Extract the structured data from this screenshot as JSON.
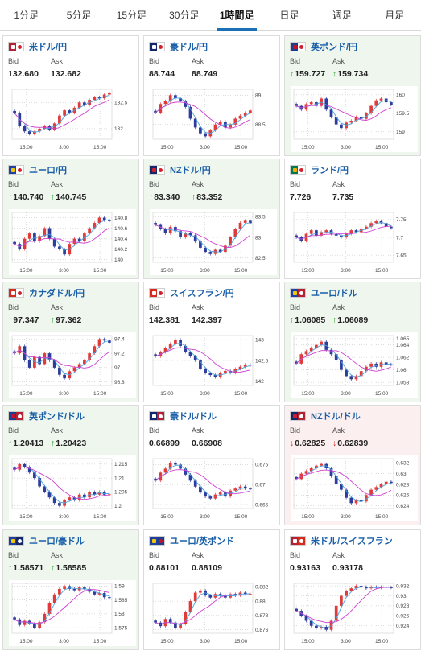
{
  "tabs": [
    {
      "label": "1分足",
      "active": false
    },
    {
      "label": "5分足",
      "active": false
    },
    {
      "label": "15分足",
      "active": false
    },
    {
      "label": "30分足",
      "active": false
    },
    {
      "label": "1時間足",
      "active": true
    },
    {
      "label": "日足",
      "active": false
    },
    {
      "label": "週足",
      "active": false
    },
    {
      "label": "月足",
      "active": false
    }
  ],
  "colors": {
    "up_candle": "#e03a3a",
    "down_candle": "#2c3d9c",
    "ma_short": "#4aa3df",
    "ma_long": "#d040d0",
    "up_arrow": "#1d9a1d",
    "down_arrow": "#d02020"
  },
  "pairs": [
    {
      "name": "米ドル/円",
      "flag_icon": "flag-us-jp",
      "bid_label": "Bid",
      "ask_label": "Ask",
      "bid": "132.680",
      "ask": "132.682",
      "trend": "none",
      "chart": {
        "x_ticks": [
          "15:00",
          "3:00",
          "15:00"
        ],
        "y_ticks": [
          "132.5",
          "132"
        ],
        "y_range": [
          131.8,
          132.75
        ],
        "closes": [
          132.3,
          132.05,
          131.95,
          131.9,
          131.95,
          132.0,
          132.05,
          131.98,
          132.1,
          132.25,
          132.35,
          132.3,
          132.4,
          132.5,
          132.45,
          132.55,
          132.6,
          132.58,
          132.65,
          132.68
        ]
      }
    },
    {
      "name": "豪ドル/円",
      "flag_icon": "flag-au-jp",
      "bid_label": "Bid",
      "ask_label": "Ask",
      "bid": "88.744",
      "ask": "88.749",
      "trend": "none",
      "chart": {
        "x_ticks": [
          "15:00",
          "3:00",
          "15:00"
        ],
        "y_ticks": [
          "89",
          "88.5"
        ],
        "y_range": [
          88.25,
          89.1
        ],
        "closes": [
          88.7,
          88.85,
          88.9,
          89.0,
          88.95,
          88.9,
          88.8,
          88.6,
          88.45,
          88.35,
          88.3,
          88.4,
          88.5,
          88.55,
          88.45,
          88.5,
          88.6,
          88.65,
          88.7,
          88.74
        ]
      }
    },
    {
      "name": "英ポンド/円",
      "flag_icon": "flag-gb-jp",
      "bid_label": "Bid",
      "ask_label": "Ask",
      "bid": "159.727",
      "ask": "159.734",
      "trend": "up",
      "chart": {
        "x_ticks": [
          "15:00",
          "3:00",
          "15:00"
        ],
        "y_ticks": [
          "160",
          "159.5",
          "159"
        ],
        "y_range": [
          158.8,
          160.15
        ],
        "closes": [
          159.7,
          159.6,
          159.75,
          159.8,
          159.7,
          159.9,
          159.6,
          159.4,
          159.2,
          159.1,
          159.25,
          159.3,
          159.4,
          159.35,
          159.5,
          159.7,
          159.85,
          159.9,
          159.8,
          159.73
        ]
      }
    },
    {
      "name": "ユーロ/円",
      "flag_icon": "flag-eu-jp",
      "bid_label": "Bid",
      "ask_label": "Ask",
      "bid": "140.740",
      "ask": "140.745",
      "trend": "up",
      "chart": {
        "x_ticks": [
          "15:00",
          "3:00",
          "15:00"
        ],
        "y_ticks": [
          "140.8",
          "140.6",
          "140.4",
          "140.2",
          "140"
        ],
        "y_range": [
          139.95,
          140.9
        ],
        "closes": [
          140.3,
          140.2,
          140.4,
          140.5,
          140.35,
          140.45,
          140.6,
          140.4,
          140.25,
          140.2,
          140.1,
          140.3,
          140.4,
          140.35,
          140.5,
          140.6,
          140.7,
          140.8,
          140.75,
          140.74
        ]
      }
    },
    {
      "name": "NZドル/円",
      "flag_icon": "flag-nz-jp",
      "bid_label": "Bid",
      "ask_label": "Ask",
      "bid": "83.340",
      "ask": "83.352",
      "trend": "up",
      "chart": {
        "x_ticks": [
          "15:00",
          "3:00",
          "15:00"
        ],
        "y_ticks": [
          "83.5",
          "83",
          "82.5"
        ],
        "y_range": [
          82.4,
          83.6
        ],
        "closes": [
          83.3,
          83.2,
          83.1,
          83.25,
          83.15,
          83.0,
          83.1,
          83.05,
          82.9,
          82.75,
          82.65,
          82.6,
          82.7,
          82.65,
          82.8,
          83.0,
          83.2,
          83.35,
          83.4,
          83.34
        ]
      }
    },
    {
      "name": "ランド/円",
      "flag_icon": "flag-za-jp",
      "bid_label": "Bid",
      "ask_label": "Ask",
      "bid": "7.726",
      "ask": "7.735",
      "trend": "none",
      "chart": {
        "x_ticks": [
          "15:00",
          "3:00",
          "15:00"
        ],
        "y_ticks": [
          "7.75",
          "7.7",
          "7.65"
        ],
        "y_range": [
          7.63,
          7.77
        ],
        "closes": [
          7.7,
          7.69,
          7.71,
          7.72,
          7.705,
          7.715,
          7.72,
          7.71,
          7.705,
          7.7,
          7.71,
          7.72,
          7.715,
          7.725,
          7.73,
          7.74,
          7.745,
          7.74,
          7.73,
          7.726
        ]
      }
    },
    {
      "name": "カナダドル/円",
      "flag_icon": "flag-ca-jp",
      "bid_label": "Bid",
      "ask_label": "Ask",
      "bid": "97.347",
      "ask": "97.362",
      "trend": "up",
      "chart": {
        "x_ticks": [
          "15:00",
          "3:00",
          "15:00"
        ],
        "y_ticks": [
          "97.4",
          "97.2",
          "97",
          "96.8"
        ],
        "y_range": [
          96.75,
          97.45
        ],
        "closes": [
          97.2,
          97.3,
          97.1,
          97.0,
          97.15,
          97.05,
          97.2,
          97.1,
          97.0,
          96.9,
          96.85,
          96.95,
          97.0,
          97.05,
          97.1,
          97.2,
          97.3,
          97.4,
          97.38,
          97.35
        ]
      }
    },
    {
      "name": "スイスフラン/円",
      "flag_icon": "flag-ch-jp",
      "bid_label": "Bid",
      "ask_label": "Ask",
      "bid": "142.381",
      "ask": "142.397",
      "trend": "none",
      "chart": {
        "x_ticks": [
          "15:00",
          "3:00",
          "15:00"
        ],
        "y_ticks": [
          "143",
          "142.5",
          "142"
        ],
        "y_range": [
          141.9,
          143.1
        ],
        "closes": [
          142.6,
          142.7,
          142.8,
          142.9,
          143.0,
          142.85,
          142.7,
          142.6,
          142.5,
          142.3,
          142.2,
          142.15,
          142.1,
          142.2,
          142.25,
          142.2,
          142.3,
          142.35,
          142.4,
          142.38
        ]
      }
    },
    {
      "name": "ユーロ/ドル",
      "flag_icon": "flag-eu-us",
      "bid_label": "Bid",
      "ask_label": "Ask",
      "bid": "1.06085",
      "ask": "1.06089",
      "trend": "up",
      "chart": {
        "x_ticks": [
          "15:00",
          "3:00",
          "15:00"
        ],
        "y_ticks": [
          "1.065",
          "1.064",
          "1.062",
          "1.06",
          "1.058"
        ],
        "y_range": [
          1.0575,
          1.0655
        ],
        "closes": [
          1.061,
          1.0625,
          1.063,
          1.0635,
          1.064,
          1.0645,
          1.0632,
          1.0625,
          1.0615,
          1.06,
          1.059,
          1.0585,
          1.059,
          1.0598,
          1.0605,
          1.061,
          1.0605,
          1.0612,
          1.0609,
          1.06085
        ]
      }
    },
    {
      "name": "英ポンド/ドル",
      "flag_icon": "flag-gb-us",
      "bid_label": "Bid",
      "ask_label": "Ask",
      "bid": "1.20413",
      "ask": "1.20423",
      "trend": "up",
      "chart": {
        "x_ticks": [
          "15:00",
          "3:00",
          "15:00"
        ],
        "y_ticks": [
          "1.215",
          "1.21",
          "1.205",
          "1.2"
        ],
        "y_range": [
          1.199,
          1.217
        ],
        "closes": [
          1.213,
          1.215,
          1.214,
          1.212,
          1.21,
          1.207,
          1.205,
          1.203,
          1.201,
          1.2,
          1.202,
          1.203,
          1.202,
          1.204,
          1.203,
          1.205,
          1.204,
          1.205,
          1.204,
          1.20413
        ]
      }
    },
    {
      "name": "豪ドル/ドル",
      "flag_icon": "flag-au-us",
      "bid_label": "Bid",
      "ask_label": "Ask",
      "bid": "0.66899",
      "ask": "0.66908",
      "trend": "none",
      "chart": {
        "x_ticks": [
          "15:00",
          "3:00",
          "15:00"
        ],
        "y_ticks": [
          "0.675",
          "0.67",
          "0.665"
        ],
        "y_range": [
          0.664,
          0.6765
        ],
        "closes": [
          0.671,
          0.673,
          0.674,
          0.6755,
          0.675,
          0.674,
          0.6725,
          0.671,
          0.6695,
          0.668,
          0.667,
          0.6665,
          0.6675,
          0.668,
          0.667,
          0.6685,
          0.669,
          0.6695,
          0.669,
          0.66899
        ]
      }
    },
    {
      "name": "NZドル/ドル",
      "flag_icon": "flag-nz-us",
      "bid_label": "Bid",
      "ask_label": "Ask",
      "bid": "0.62825",
      "ask": "0.62839",
      "trend": "down",
      "chart": {
        "x_ticks": [
          "15:00",
          "3:00",
          "15:00"
        ],
        "y_ticks": [
          "0.632",
          "0.63",
          "0.628",
          "0.626",
          "0.624"
        ],
        "y_range": [
          0.6235,
          0.6328
        ],
        "closes": [
          0.629,
          0.63,
          0.6305,
          0.631,
          0.6315,
          0.6318,
          0.631,
          0.6295,
          0.628,
          0.627,
          0.6255,
          0.6245,
          0.625,
          0.6248,
          0.626,
          0.627,
          0.6275,
          0.628,
          0.6285,
          0.62825
        ]
      }
    },
    {
      "name": "ユーロ/豪ドル",
      "flag_icon": "flag-eu-au",
      "bid_label": "Bid",
      "ask_label": "Ask",
      "bid": "1.58571",
      "ask": "1.58585",
      "trend": "up",
      "chart": {
        "x_ticks": [
          "15:00",
          "3:00",
          "15:00"
        ],
        "y_ticks": [
          "1.59",
          "1.585",
          "1.58",
          "1.575"
        ],
        "y_range": [
          1.573,
          1.591
        ],
        "closes": [
          1.578,
          1.576,
          1.5775,
          1.5765,
          1.575,
          1.577,
          1.58,
          1.584,
          1.587,
          1.589,
          1.59,
          1.589,
          1.5885,
          1.5895,
          1.589,
          1.588,
          1.587,
          1.5875,
          1.586,
          1.58571
        ]
      }
    },
    {
      "name": "ユーロ/英ポンド",
      "flag_icon": "flag-eu-gb",
      "bid_label": "Bid",
      "ask_label": "Ask",
      "bid": "0.88101",
      "ask": "0.88109",
      "trend": "none",
      "chart": {
        "x_ticks": [
          "15:00",
          "3:00",
          "15:00"
        ],
        "y_ticks": [
          "0.882",
          "0.88",
          "0.878",
          "0.876"
        ],
        "y_range": [
          0.8755,
          0.8825
        ],
        "closes": [
          0.877,
          0.8765,
          0.8775,
          0.877,
          0.8762,
          0.8768,
          0.8785,
          0.88,
          0.8812,
          0.8815,
          0.8808,
          0.8805,
          0.881,
          0.8808,
          0.8805,
          0.881,
          0.8808,
          0.8812,
          0.881,
          0.88101
        ]
      }
    },
    {
      "name": "米ドル/スイスフラン",
      "flag_icon": "flag-us-ch",
      "bid_label": "Bid",
      "ask_label": "Ask",
      "bid": "0.93163",
      "ask": "0.93178",
      "trend": "none",
      "chart": {
        "x_ticks": [
          "15:00",
          "3:00",
          "15:00"
        ],
        "y_ticks": [
          "0.932",
          "0.93",
          "0.928",
          "0.926",
          "0.924"
        ],
        "y_range": [
          0.9225,
          0.9325
        ],
        "closes": [
          0.927,
          0.926,
          0.925,
          0.924,
          0.9235,
          0.9238,
          0.9232,
          0.925,
          0.928,
          0.93,
          0.931,
          0.9315,
          0.932,
          0.9318,
          0.9315,
          0.9318,
          0.9316,
          0.9318,
          0.9317,
          0.93163
        ]
      }
    }
  ]
}
